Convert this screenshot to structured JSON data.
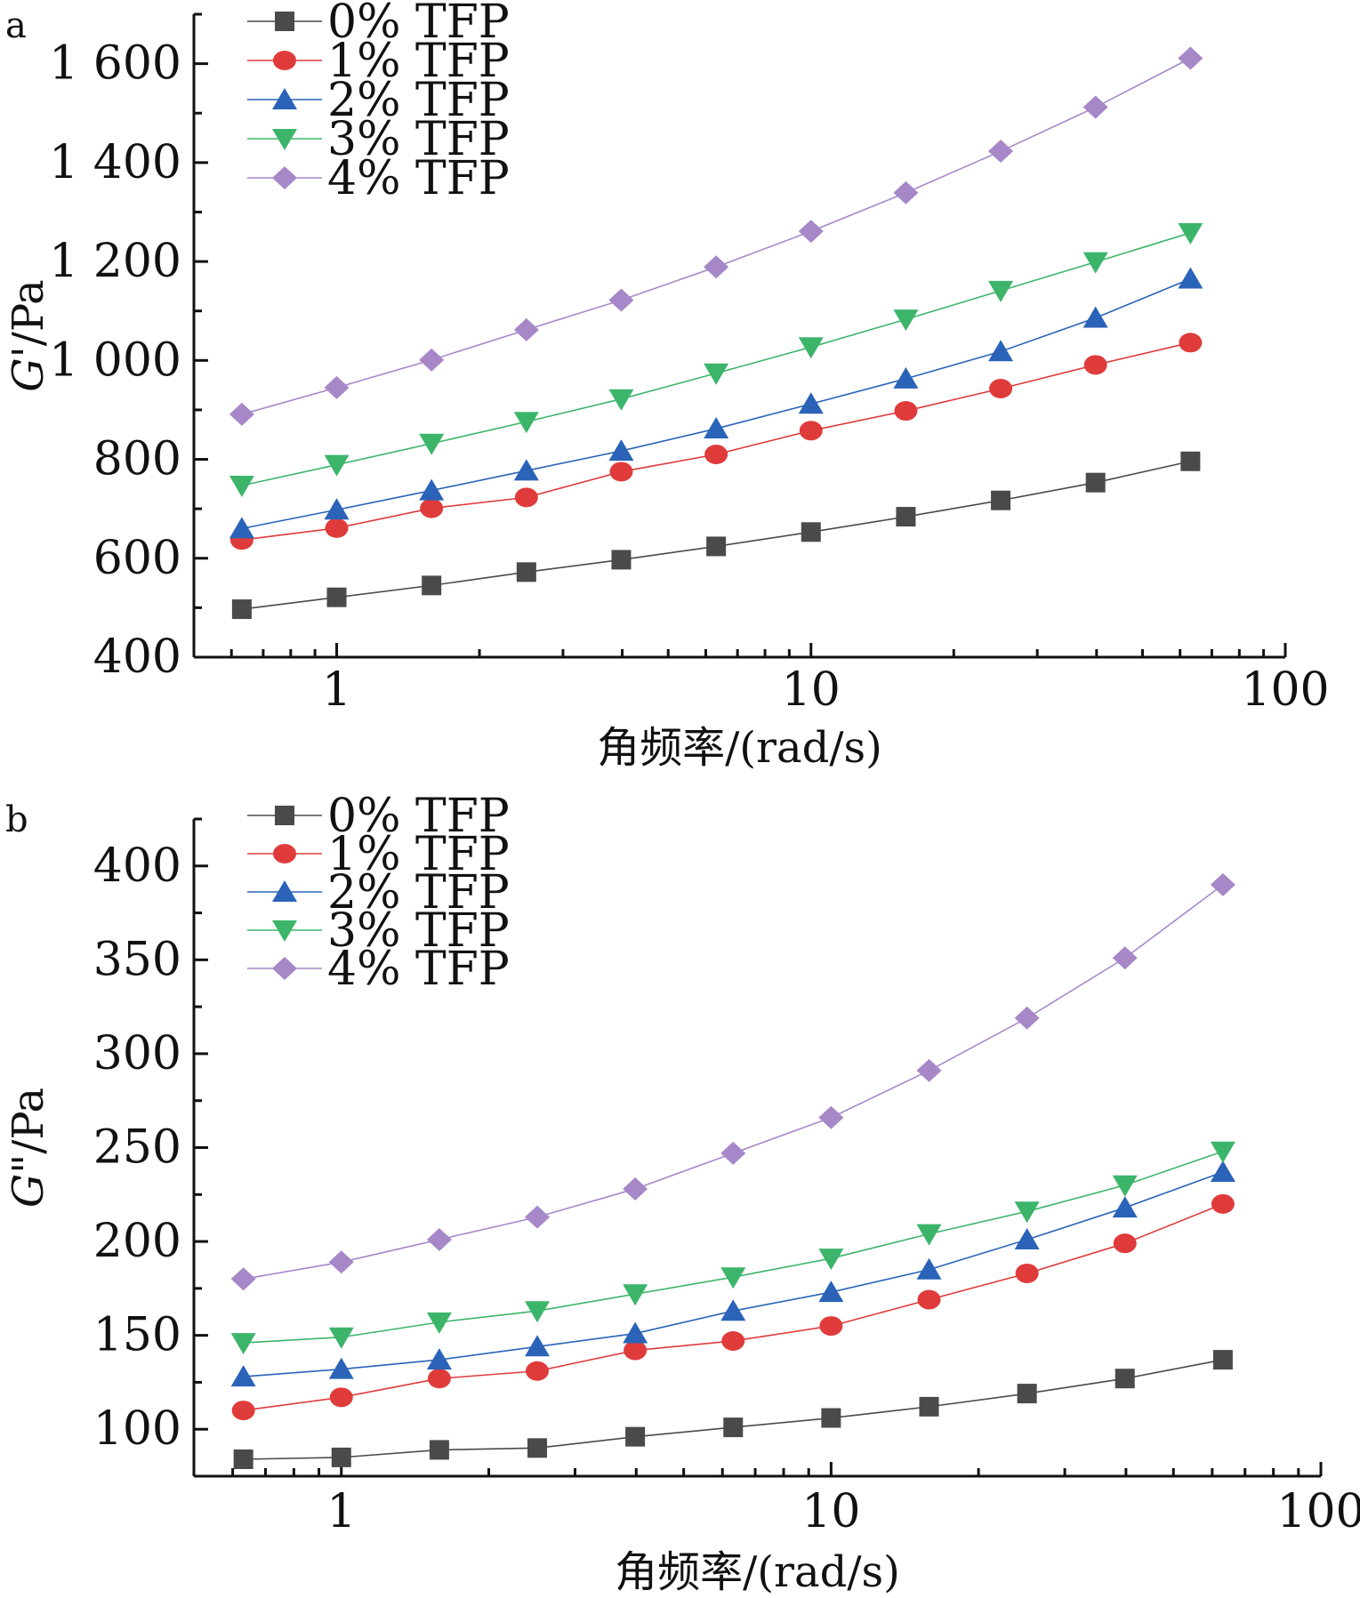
{
  "chart_data": [
    {
      "type": "line",
      "panel_label": "a",
      "xlabel": "角频率/(rad/s)",
      "ylabel_symbol": "G'",
      "ylabel_unit": "/Pa",
      "xscale": "log",
      "xlim": [
        0.5,
        100
      ],
      "ylim": [
        400,
        1700
      ],
      "x_ticks": [
        1,
        10,
        100
      ],
      "x_tick_labels": [
        "1",
        "10",
        "100"
      ],
      "y_ticks": [
        400,
        600,
        800,
        1000,
        1200,
        1400,
        1600
      ],
      "y_tick_labels": [
        "400",
        "600",
        "800",
        "1 000",
        "1 200",
        "1 400",
        "1 600"
      ],
      "legend_position": "top-left",
      "x": [
        0.631,
        1,
        1.585,
        2.512,
        3.981,
        6.31,
        10,
        15.85,
        25.12,
        39.81,
        63.1
      ],
      "series": [
        {
          "name": "0% TFP",
          "marker": "square",
          "color": "#4a4a4a",
          "values": [
            497,
            521,
            545,
            572,
            597,
            624,
            653,
            684,
            717,
            753,
            796
          ]
        },
        {
          "name": "1% TFP",
          "marker": "circle",
          "color": "#e03b3b",
          "values": [
            637,
            661,
            701,
            723,
            775,
            810,
            858,
            898,
            943,
            991,
            1036
          ]
        },
        {
          "name": "2% TFP",
          "marker": "triangle-up",
          "color": "#2a63b8",
          "values": [
            660,
            698,
            737,
            777,
            817,
            862,
            912,
            963,
            1018,
            1086,
            1165
          ]
        },
        {
          "name": "3% TFP",
          "marker": "triangle-down",
          "color": "#3cb56a",
          "values": [
            747,
            789,
            832,
            876,
            922,
            974,
            1027,
            1083,
            1141,
            1199,
            1258
          ]
        },
        {
          "name": "4% TFP",
          "marker": "diamond",
          "color": "#a688c8",
          "values": [
            891,
            945,
            1001,
            1062,
            1122,
            1189,
            1261,
            1339,
            1423,
            1512,
            1611
          ]
        }
      ]
    },
    {
      "type": "line",
      "panel_label": "b",
      "xlabel": "角频率/(rad/s)",
      "ylabel_symbol": "G\"",
      "ylabel_unit": "/Pa",
      "xscale": "log",
      "xlim": [
        0.5,
        100
      ],
      "ylim": [
        75,
        425
      ],
      "x_ticks": [
        1,
        10,
        100
      ],
      "x_tick_labels": [
        "1",
        "10",
        "100"
      ],
      "y_ticks": [
        100,
        150,
        200,
        250,
        300,
        350,
        400
      ],
      "y_tick_labels": [
        "100",
        "150",
        "200",
        "250",
        "300",
        "350",
        "400"
      ],
      "legend_position": "top-left",
      "x": [
        0.631,
        1,
        1.585,
        2.512,
        3.981,
        6.31,
        10,
        15.85,
        25.12,
        39.81,
        63.1
      ],
      "series": [
        {
          "name": "0% TFP",
          "marker": "square",
          "color": "#4a4a4a",
          "values": [
            84,
            85,
            89,
            90,
            96,
            101,
            106,
            112,
            119,
            127,
            137
          ]
        },
        {
          "name": "1% TFP",
          "marker": "circle",
          "color": "#e03b3b",
          "values": [
            110,
            117,
            127,
            131,
            142,
            147,
            155,
            169,
            183,
            199,
            220
          ]
        },
        {
          "name": "2% TFP",
          "marker": "triangle-up",
          "color": "#2a63b8",
          "values": [
            128,
            132,
            137,
            144,
            151,
            163,
            173,
            185,
            201,
            218,
            237
          ]
        },
        {
          "name": "3% TFP",
          "marker": "triangle-down",
          "color": "#3cb56a",
          "values": [
            146,
            149,
            157,
            163,
            172,
            181,
            191,
            204,
            216,
            230,
            248
          ]
        },
        {
          "name": "4% TFP",
          "marker": "diamond",
          "color": "#a688c8",
          "values": [
            180,
            189,
            201,
            213,
            228,
            247,
            266,
            291,
            319,
            351,
            390
          ]
        }
      ]
    }
  ]
}
